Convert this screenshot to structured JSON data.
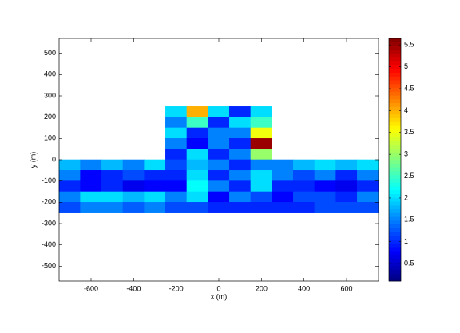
{
  "chart_data": {
    "type": "heatmap",
    "xlabel": "x (m)",
    "ylabel": "y (m)",
    "x": [
      -700,
      -600,
      -500,
      -400,
      -300,
      -200,
      -100,
      0,
      100,
      200,
      300,
      400,
      500,
      600,
      700
    ],
    "y": [
      225,
      175,
      125,
      75,
      25,
      -25,
      -75,
      -125,
      -175,
      -225
    ],
    "z": [
      [
        null,
        null,
        null,
        null,
        null,
        2,
        4,
        2,
        1,
        2,
        null,
        null,
        null,
        null,
        null
      ],
      [
        null,
        null,
        null,
        null,
        null,
        1.5,
        2.5,
        1,
        2,
        2.5,
        null,
        null,
        null,
        null,
        null
      ],
      [
        null,
        null,
        null,
        null,
        null,
        2,
        1,
        1.5,
        1.5,
        3.5,
        null,
        null,
        null,
        null,
        null
      ],
      [
        null,
        null,
        null,
        null,
        null,
        1.5,
        0.8,
        1.5,
        1,
        5.5,
        null,
        null,
        null,
        null,
        null
      ],
      [
        null,
        null,
        null,
        null,
        null,
        1,
        2,
        1,
        1.5,
        3,
        null,
        null,
        null,
        null,
        null
      ],
      [
        1.8,
        1.5,
        1.8,
        1.5,
        2,
        1.2,
        1.8,
        1.5,
        1,
        1.5,
        1.5,
        1.8,
        2,
        1.8,
        2
      ],
      [
        1.5,
        0.8,
        1,
        1.2,
        1,
        1,
        2,
        1,
        1.5,
        2,
        1.5,
        1.2,
        1.5,
        1,
        1.5
      ],
      [
        1,
        0.8,
        1,
        0.7,
        0.8,
        0.8,
        2.2,
        1.5,
        1,
        2,
        1,
        1,
        0.8,
        0.7,
        1
      ],
      [
        1.5,
        2,
        2,
        1.8,
        2,
        1.5,
        2,
        0.8,
        1.5,
        1.2,
        0.8,
        1.2,
        1.2,
        1,
        1.5
      ],
      [
        1.2,
        1.5,
        1.5,
        1.3,
        1.5,
        1.2,
        1.2,
        1,
        1,
        1,
        1,
        1,
        1.2,
        1.2,
        1.2
      ]
    ],
    "cell_width": 100,
    "cell_height": 50,
    "xlim": [
      -750,
      750
    ],
    "ylim": [
      -570,
      570
    ],
    "xticks": [
      -600,
      -400,
      -200,
      0,
      200,
      400,
      600
    ],
    "yticks": [
      -500,
      -400,
      -300,
      -200,
      -100,
      0,
      100,
      200,
      300,
      400,
      500
    ],
    "colormap": "jet",
    "clim": [
      0.1,
      5.65
    ],
    "cticks": [
      0.5,
      1,
      1.5,
      2,
      2.5,
      3,
      3.5,
      4,
      4.5,
      5,
      5.5
    ]
  }
}
